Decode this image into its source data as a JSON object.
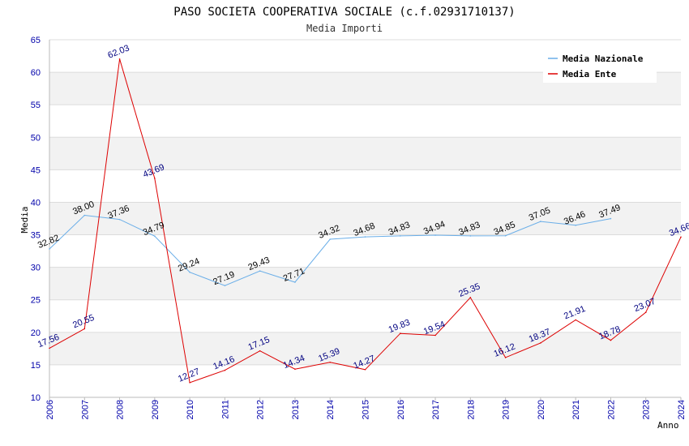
{
  "chart_data": {
    "type": "line",
    "title": "PASO SOCIETA COOPERATIVA SOCIALE (c.f.02931710137)",
    "subtitle": "Media Importi",
    "xlabel": "Anno",
    "ylabel": "Media",
    "ylim": [
      10,
      65
    ],
    "yticks": [
      "10",
      "15",
      "20",
      "25",
      "30",
      "35",
      "40",
      "45",
      "50",
      "55",
      "60",
      "65"
    ],
    "x": [
      "2006",
      "2007",
      "2008",
      "2009",
      "2010",
      "2011",
      "2012",
      "2013",
      "2014",
      "2015",
      "2016",
      "2017",
      "2018",
      "2019",
      "2020",
      "2021",
      "2022",
      "2023",
      "2024"
    ],
    "grid": true,
    "legend_position": "top-right",
    "series": [
      {
        "name": "Media Nazionale",
        "color": "#6aaee8",
        "label_color": "#000000",
        "values": [
          32.82,
          38.0,
          37.36,
          34.79,
          29.24,
          27.19,
          29.43,
          27.71,
          34.32,
          34.68,
          34.83,
          34.94,
          34.83,
          34.85,
          37.05,
          36.46,
          37.49,
          null,
          null
        ],
        "labels": [
          "32.82",
          "38.00",
          "37.36",
          "34.79",
          "29.24",
          "27.19",
          "29.43",
          "27.71",
          "34.32",
          "34.68",
          "34.83",
          "34.94",
          "34.83",
          "34.85",
          "37.05",
          "36.46",
          "37.49",
          "",
          ""
        ]
      },
      {
        "name": "Media Ente",
        "color": "#dd0000",
        "label_color": "#000080",
        "values": [
          17.56,
          20.55,
          62.03,
          43.69,
          12.27,
          14.16,
          17.15,
          14.34,
          15.39,
          14.27,
          19.83,
          19.54,
          25.35,
          16.12,
          18.37,
          21.91,
          18.78,
          23.07,
          34.66
        ],
        "labels": [
          "17.56",
          "20.55",
          "62.03",
          "43.69",
          "12.27",
          "14.16",
          "17.15",
          "14.34",
          "15.39",
          "14.27",
          "19.83",
          "19.54",
          "25.35",
          "16.12",
          "18.37",
          "21.91",
          "18.78",
          "23.07",
          "34.66"
        ]
      }
    ]
  }
}
